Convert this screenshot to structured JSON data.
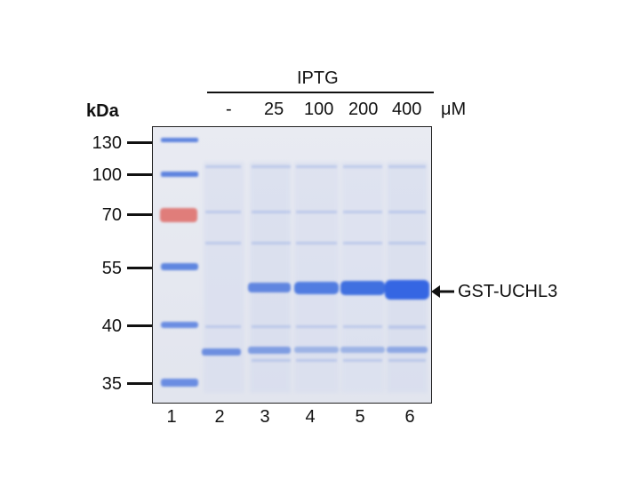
{
  "header": {
    "kda_label": "kDa",
    "iptg_label": "IPTG",
    "unit_label": "μM",
    "concentrations": [
      "-",
      "25",
      "100",
      "200",
      "400"
    ]
  },
  "markers": [
    "130",
    "100",
    "70",
    "55",
    "40",
    "35"
  ],
  "lanes": [
    "1",
    "2",
    "3",
    "4",
    "5",
    "6"
  ],
  "target": {
    "label": "GST-UCHL3",
    "arrow_icon": "left-arrow-icon"
  },
  "colors": {
    "gel_background": "#e6e8ef",
    "band_blue": "#3f6fdc",
    "ladder_red": "#e06b6b",
    "text": "#111111"
  }
}
